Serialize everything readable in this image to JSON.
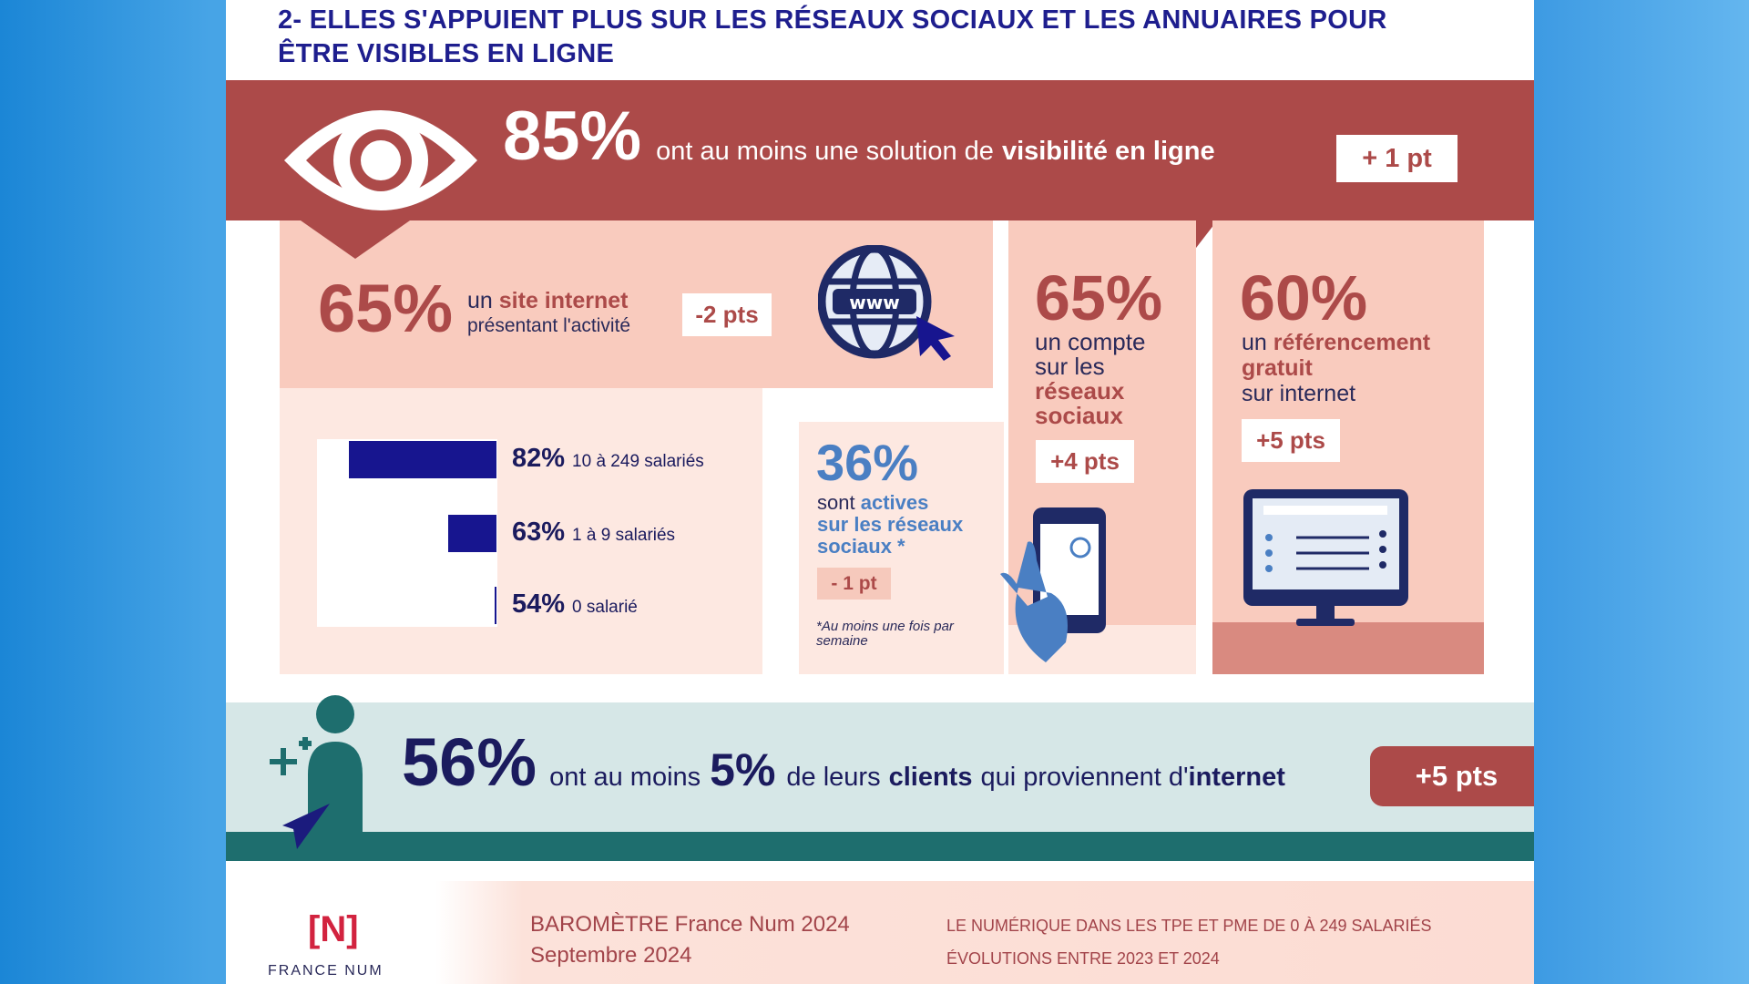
{
  "title": "2- ELLES S'APPUIENT PLUS SUR LES RÉSEAUX SOCIAUX ET LES ANNUAIRES POUR ÊTRE VISIBLES EN LIGNE",
  "top": {
    "value": "85%",
    "text": "ont au moins une solution de",
    "bold": "visibilité en ligne",
    "delta": "+ 1 pt",
    "icon": "eye-icon"
  },
  "site": {
    "value": "65%",
    "pre": "un",
    "bold": "site internet",
    "line2": "présentant l'activité",
    "delta": "-2 pts",
    "icon": "globe-www-icon"
  },
  "chart_data": {
    "type": "bar",
    "orientation": "horizontal",
    "categories": [
      "10 à 249 salariés",
      "1 à 9 salariés",
      "0 salarié"
    ],
    "values": [
      82,
      63,
      54
    ],
    "labels": [
      "82%",
      "63%",
      "54%"
    ],
    "xlim": [
      0,
      100
    ],
    "color": "#17158f"
  },
  "social": {
    "value": "65%",
    "l1": "un compte",
    "l2": "sur les",
    "b1": "réseaux",
    "b2": "sociaux",
    "delta": "+4 pts",
    "icon": "smartphone-icon"
  },
  "active": {
    "value": "36%",
    "pre": "sont",
    "b1": "actives",
    "b2": "sur les réseaux",
    "b3": "sociaux *",
    "delta": "- 1 pt",
    "note": "*Au moins une fois par semaine"
  },
  "ref": {
    "value": "60%",
    "pre": "un",
    "b1": "référencement",
    "b2": "gratuit",
    "l3": "sur internet",
    "delta": "+5 pts",
    "icon": "monitor-directory-icon"
  },
  "clients": {
    "value": "56%",
    "t1": "ont au moins",
    "pct": "5%",
    "t2": "de leurs",
    "b1": "clients",
    "t3": "qui proviennent d'",
    "b2": "internet",
    "delta": "+5 pts"
  },
  "footer": {
    "logo": "[N]",
    "logo_name": "FRANCE NUM",
    "baro": "BAROMÈTRE France Num 2024",
    "date": "Septembre 2024",
    "scope": "LE NUMÉRIQUE DANS LES TPE ET PME DE 0 À 249 SALARIÉS",
    "evol": "ÉVOLUTIONS ENTRE 2023 ET 2024"
  },
  "colors": {
    "red": "#ac4a49",
    "pink": "#f9cbbe",
    "navy": "#17158f",
    "teal": "#1e6e6e"
  }
}
